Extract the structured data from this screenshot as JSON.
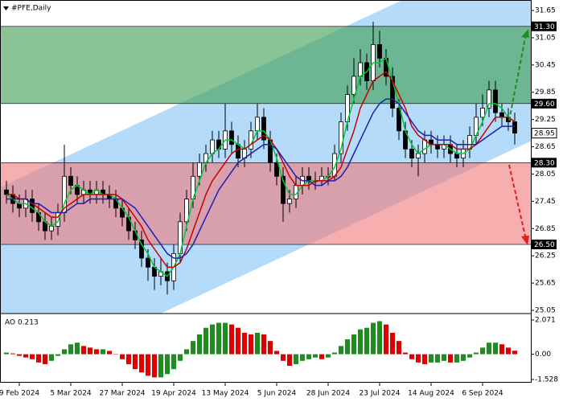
{
  "chart_data": {
    "type": "candlestick",
    "title": "#PFE,Daily",
    "ao_label": "AO 0.213",
    "categories": [
      null,
      null,
      "9 Feb 2024",
      null,
      null,
      null,
      null,
      null,
      null,
      null,
      "5 Mar 2024",
      null,
      null,
      null,
      null,
      null,
      null,
      null,
      "27 Mar 2024",
      null,
      null,
      null,
      null,
      null,
      null,
      null,
      "19 Apr 2024",
      null,
      null,
      null,
      null,
      null,
      null,
      null,
      "13 May 2024",
      null,
      null,
      null,
      null,
      null,
      null,
      null,
      "5 Jun 2024",
      null,
      null,
      null,
      null,
      null,
      null,
      null,
      "28 Jun 2024",
      null,
      null,
      null,
      null,
      null,
      null,
      null,
      "23 Jul 2024",
      null,
      null,
      null,
      null,
      null,
      null,
      null,
      "14 Aug 2024",
      null,
      null,
      null,
      null,
      null,
      null,
      null,
      "6 Sep 2024",
      null,
      null,
      null,
      null,
      null
    ],
    "candles": [
      [
        27.7,
        27.9,
        27.4,
        27.6
      ],
      [
        27.6,
        27.8,
        27.2,
        27.4
      ],
      [
        27.4,
        27.6,
        27.1,
        27.3
      ],
      [
        27.3,
        27.7,
        27.1,
        27.5
      ],
      [
        27.5,
        27.7,
        27.0,
        27.2
      ],
      [
        27.2,
        27.4,
        26.8,
        27.0
      ],
      [
        27.0,
        27.2,
        26.6,
        26.8
      ],
      [
        26.8,
        27.1,
        26.6,
        26.9
      ],
      [
        26.9,
        27.4,
        26.7,
        27.2
      ],
      [
        27.2,
        28.7,
        27.0,
        28.0
      ],
      [
        28.0,
        28.2,
        27.6,
        27.8
      ],
      [
        27.8,
        28.0,
        27.4,
        27.6
      ],
      [
        27.6,
        27.9,
        27.4,
        27.7
      ],
      [
        27.7,
        27.9,
        27.4,
        27.6
      ],
      [
        27.6,
        27.9,
        27.4,
        27.7
      ],
      [
        27.7,
        27.9,
        27.4,
        27.6
      ],
      [
        27.6,
        27.8,
        27.3,
        27.5
      ],
      [
        27.5,
        27.7,
        27.1,
        27.3
      ],
      [
        27.3,
        27.5,
        26.9,
        27.1
      ],
      [
        27.1,
        27.3,
        26.6,
        26.8
      ],
      [
        26.8,
        27.0,
        26.4,
        26.6
      ],
      [
        26.6,
        26.8,
        26.0,
        26.2
      ],
      [
        26.2,
        26.4,
        25.7,
        26.0
      ],
      [
        26.0,
        26.2,
        25.5,
        25.8
      ],
      [
        25.8,
        26.2,
        25.6,
        25.9
      ],
      [
        25.9,
        26.1,
        25.4,
        25.7
      ],
      [
        25.7,
        26.5,
        25.5,
        26.3
      ],
      [
        26.3,
        27.2,
        26.1,
        27.0
      ],
      [
        27.0,
        27.7,
        26.8,
        27.5
      ],
      [
        27.5,
        28.3,
        27.3,
        28.0
      ],
      [
        28.0,
        28.5,
        27.8,
        28.3
      ],
      [
        28.3,
        28.7,
        28.1,
        28.5
      ],
      [
        28.5,
        29.0,
        28.3,
        28.8
      ],
      [
        28.8,
        29.0,
        28.4,
        28.6
      ],
      [
        28.6,
        29.6,
        28.4,
        29.0
      ],
      [
        29.0,
        29.2,
        28.5,
        28.7
      ],
      [
        28.7,
        28.9,
        28.2,
        28.4
      ],
      [
        28.4,
        28.8,
        28.2,
        28.6
      ],
      [
        28.6,
        29.2,
        28.4,
        29.0
      ],
      [
        29.0,
        29.6,
        28.8,
        29.3
      ],
      [
        29.3,
        29.5,
        28.6,
        28.8
      ],
      [
        28.8,
        29.0,
        28.1,
        28.3
      ],
      [
        28.3,
        28.5,
        27.8,
        28.0
      ],
      [
        28.0,
        28.2,
        27.0,
        27.4
      ],
      [
        27.4,
        27.7,
        27.2,
        27.5
      ],
      [
        27.5,
        28.0,
        27.3,
        27.8
      ],
      [
        27.8,
        28.2,
        27.6,
        28.0
      ],
      [
        28.0,
        28.2,
        27.7,
        27.9
      ],
      [
        27.9,
        28.1,
        27.7,
        27.9
      ],
      [
        27.9,
        28.2,
        27.8,
        28.0
      ],
      [
        28.0,
        28.2,
        27.8,
        28.0
      ],
      [
        28.0,
        28.7,
        27.9,
        28.5
      ],
      [
        28.5,
        29.4,
        28.3,
        29.2
      ],
      [
        29.2,
        30.0,
        29.0,
        29.8
      ],
      [
        29.8,
        30.6,
        29.6,
        30.2
      ],
      [
        30.2,
        30.8,
        30.0,
        30.5
      ],
      [
        30.5,
        30.7,
        29.9,
        30.1
      ],
      [
        30.1,
        31.4,
        29.9,
        30.9
      ],
      [
        30.9,
        31.2,
        30.4,
        30.6
      ],
      [
        30.6,
        30.8,
        30.0,
        30.2
      ],
      [
        30.2,
        30.4,
        29.3,
        29.5
      ],
      [
        29.5,
        29.7,
        28.8,
        29.0
      ],
      [
        29.0,
        29.2,
        28.4,
        28.6
      ],
      [
        28.6,
        28.8,
        28.2,
        28.4
      ],
      [
        28.4,
        28.7,
        28.0,
        28.5
      ],
      [
        28.5,
        29.0,
        28.3,
        28.8
      ],
      [
        28.8,
        29.0,
        28.5,
        28.7
      ],
      [
        28.7,
        28.9,
        28.4,
        28.6
      ],
      [
        28.6,
        28.9,
        28.4,
        28.7
      ],
      [
        28.7,
        28.9,
        28.3,
        28.5
      ],
      [
        28.5,
        28.7,
        28.2,
        28.4
      ],
      [
        28.4,
        28.8,
        28.2,
        28.6
      ],
      [
        28.6,
        29.1,
        28.4,
        28.9
      ],
      [
        28.9,
        29.6,
        28.7,
        29.3
      ],
      [
        29.3,
        29.8,
        29.1,
        29.5
      ],
      [
        29.5,
        30.1,
        29.3,
        29.9
      ],
      [
        29.9,
        30.1,
        29.2,
        29.4
      ],
      [
        29.4,
        29.6,
        29.1,
        29.3
      ],
      [
        29.3,
        29.5,
        29.0,
        29.2
      ],
      [
        29.2,
        29.4,
        28.7,
        28.95
      ]
    ],
    "up_color": "#ffffff",
    "down_color": "#000000",
    "series": [
      {
        "color": "#00c832",
        "values": [
          27.6,
          27.5,
          27.4,
          27.4,
          27.3,
          27.2,
          27.0,
          26.9,
          27.0,
          27.4,
          27.7,
          27.8,
          27.7,
          27.6,
          27.7,
          27.6,
          27.6,
          27.5,
          27.3,
          27.1,
          26.8,
          26.5,
          26.3,
          26.0,
          25.9,
          25.8,
          26.0,
          26.3,
          26.9,
          27.5,
          27.9,
          28.3,
          28.5,
          28.6,
          28.8,
          28.8,
          28.7,
          28.6,
          28.7,
          29.0,
          29.0,
          28.8,
          28.4,
          27.9,
          27.6,
          27.6,
          27.8,
          27.9,
          27.9,
          27.9,
          28.0,
          28.2,
          28.6,
          29.2,
          29.7,
          30.2,
          30.3,
          30.5,
          30.5,
          30.6,
          30.1,
          29.6,
          29.0,
          28.7,
          28.5,
          28.6,
          28.7,
          28.7,
          28.7,
          28.6,
          28.5,
          28.5,
          28.6,
          28.9,
          29.2,
          29.6,
          29.6,
          29.5,
          29.3,
          29.2
        ]
      },
      {
        "color": "#c80000",
        "values": [
          27.6,
          27.6,
          27.5,
          27.5,
          27.4,
          27.3,
          27.2,
          27.1,
          27.1,
          27.3,
          27.4,
          27.5,
          27.6,
          27.6,
          27.6,
          27.6,
          27.6,
          27.6,
          27.5,
          27.3,
          27.1,
          26.9,
          26.6,
          26.4,
          26.2,
          26.0,
          26.0,
          26.1,
          26.4,
          26.8,
          27.2,
          27.6,
          27.9,
          28.1,
          28.3,
          28.5,
          28.6,
          28.6,
          28.7,
          28.8,
          28.9,
          28.8,
          28.6,
          28.3,
          28.0,
          27.8,
          27.8,
          27.8,
          27.9,
          27.9,
          27.9,
          28.0,
          28.2,
          28.6,
          29.0,
          29.5,
          29.8,
          30.1,
          30.2,
          30.3,
          30.1,
          29.8,
          29.5,
          29.1,
          28.9,
          28.8,
          28.7,
          28.7,
          28.7,
          28.7,
          28.6,
          28.6,
          28.6,
          28.7,
          28.9,
          29.1,
          29.3,
          29.3,
          29.3,
          29.2
        ]
      },
      {
        "color": "#1e1eb4",
        "values": [
          27.5,
          27.5,
          27.5,
          27.5,
          27.4,
          27.4,
          27.3,
          27.2,
          27.2,
          27.2,
          27.3,
          27.4,
          27.4,
          27.5,
          27.5,
          27.5,
          27.5,
          27.5,
          27.5,
          27.4,
          27.3,
          27.1,
          26.9,
          26.7,
          26.5,
          26.3,
          26.2,
          26.2,
          26.3,
          26.5,
          26.8,
          27.1,
          27.4,
          27.7,
          27.9,
          28.1,
          28.3,
          28.4,
          28.5,
          28.6,
          28.7,
          28.7,
          28.6,
          28.4,
          28.2,
          28.0,
          27.9,
          27.9,
          27.8,
          27.8,
          27.9,
          27.9,
          28.0,
          28.2,
          28.5,
          28.8,
          29.1,
          29.4,
          29.6,
          29.7,
          29.7,
          29.6,
          29.4,
          29.2,
          29.0,
          28.9,
          28.9,
          28.8,
          28.8,
          28.8,
          28.7,
          28.7,
          28.7,
          28.7,
          28.8,
          28.9,
          29.0,
          29.1,
          29.1,
          29.1
        ]
      }
    ],
    "ylim": [
      25.05,
      31.65
    ],
    "yticks": [
      31.65,
      31.05,
      30.45,
      29.85,
      29.25,
      28.65,
      28.05,
      27.45,
      26.85,
      26.25,
      25.65,
      25.05
    ],
    "levels": [
      {
        "value": 31.3,
        "label": "31.30"
      },
      {
        "value": 29.6,
        "label": "29.60"
      },
      {
        "value": 28.3,
        "label": "28.30"
      },
      {
        "value": 26.5,
        "label": "26.50"
      }
    ],
    "zone_colors": [
      "#3c9c50",
      "#f07878"
    ],
    "last_price": 28.95,
    "ao": {
      "values": [
        0.1,
        0.05,
        -0.1,
        -0.2,
        -0.3,
        -0.5,
        -0.6,
        -0.4,
        -0.1,
        0.3,
        0.6,
        0.7,
        0.5,
        0.4,
        0.3,
        0.3,
        0.2,
        0.0,
        -0.3,
        -0.6,
        -0.9,
        -1.1,
        -1.3,
        -1.4,
        -1.4,
        -1.2,
        -0.9,
        -0.4,
        0.3,
        0.8,
        1.2,
        1.6,
        1.8,
        1.9,
        1.9,
        1.8,
        1.6,
        1.3,
        1.2,
        1.3,
        1.2,
        0.8,
        0.2,
        -0.4,
        -0.7,
        -0.6,
        -0.4,
        -0.3,
        -0.2,
        -0.3,
        -0.2,
        0.1,
        0.5,
        0.9,
        1.2,
        1.5,
        1.6,
        1.9,
        2.0,
        1.8,
        1.3,
        0.8,
        0.1,
        -0.3,
        -0.5,
        -0.6,
        -0.5,
        -0.5,
        -0.4,
        -0.5,
        -0.5,
        -0.4,
        -0.2,
        0.1,
        0.4,
        0.7,
        0.7,
        0.6,
        0.4,
        0.213
      ],
      "up_color": "#1e8c1e",
      "down_color": "#dc0000",
      "ylim": [
        -1.528,
        2.071
      ],
      "yticks": [
        2.071,
        {
          "value": 0,
          "label": "0.00"
        },
        -1.528
      ]
    }
  }
}
